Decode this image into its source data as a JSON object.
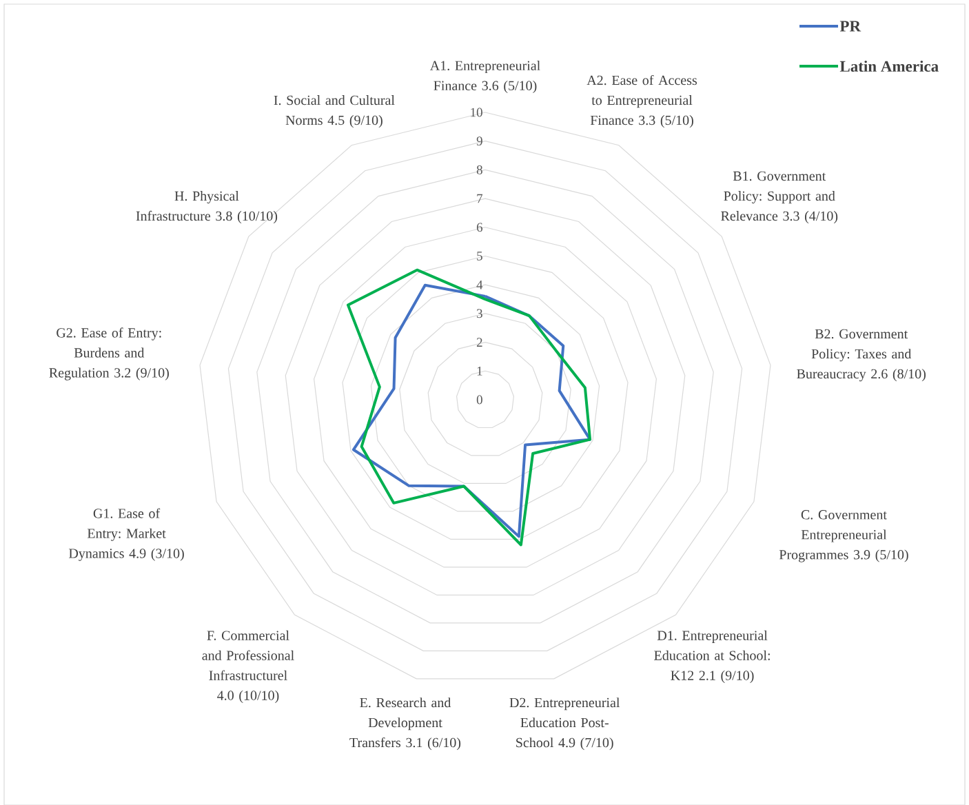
{
  "chart_data": {
    "type": "radar",
    "categories": [
      "A1. Entrepreneurial Finance 3.6 (5/10)",
      "A2. Ease of Access to Entrepreneurial Finance 3.3 (5/10)",
      "B1. Government Policy: Support and Relevance 3.3 (4/10)",
      "B2. Government Policy: Taxes and Bureaucracy 2.6 (8/10)",
      "C. Government Entrepreneurial Programmes 3.9 (5/10)",
      "D1. Entrepreneurial Education at School: K12 2.1 (9/10)",
      "D2. Entrepreneurial Education Post-School 4.9 (7/10)",
      "E. Research and Development Transfers 3.1 (6/10)",
      "F. Commercial and Professional Infrastructurel 4.0 (10/10)",
      "G1. Ease of Entry: Market Dynamics 4.9 (3/10)",
      "G2. Ease of Entry: Burdens and Regulation 3.2 (9/10)",
      "H. Physical Infrastructure 3.8 (10/10)",
      "I. Social and Cultural Norms 4.5 (9/10)"
    ],
    "series": [
      {
        "name": "PR",
        "color": "#4472c4",
        "values": [
          3.6,
          3.3,
          3.3,
          2.6,
          3.9,
          2.1,
          4.9,
          3.1,
          4.0,
          4.9,
          3.2,
          3.8,
          4.5
        ]
      },
      {
        "name": "Latin America",
        "color": "#00b050",
        "values": [
          3.5,
          3.3,
          3.0,
          3.5,
          3.9,
          2.5,
          5.2,
          3.1,
          4.8,
          4.6,
          3.7,
          5.8,
          5.1
        ]
      }
    ],
    "ylim": [
      0,
      10
    ],
    "yticks": [
      0,
      1,
      2,
      3,
      4,
      5,
      6,
      7,
      8,
      9,
      10
    ],
    "grid": true,
    "legend": "top right"
  }
}
